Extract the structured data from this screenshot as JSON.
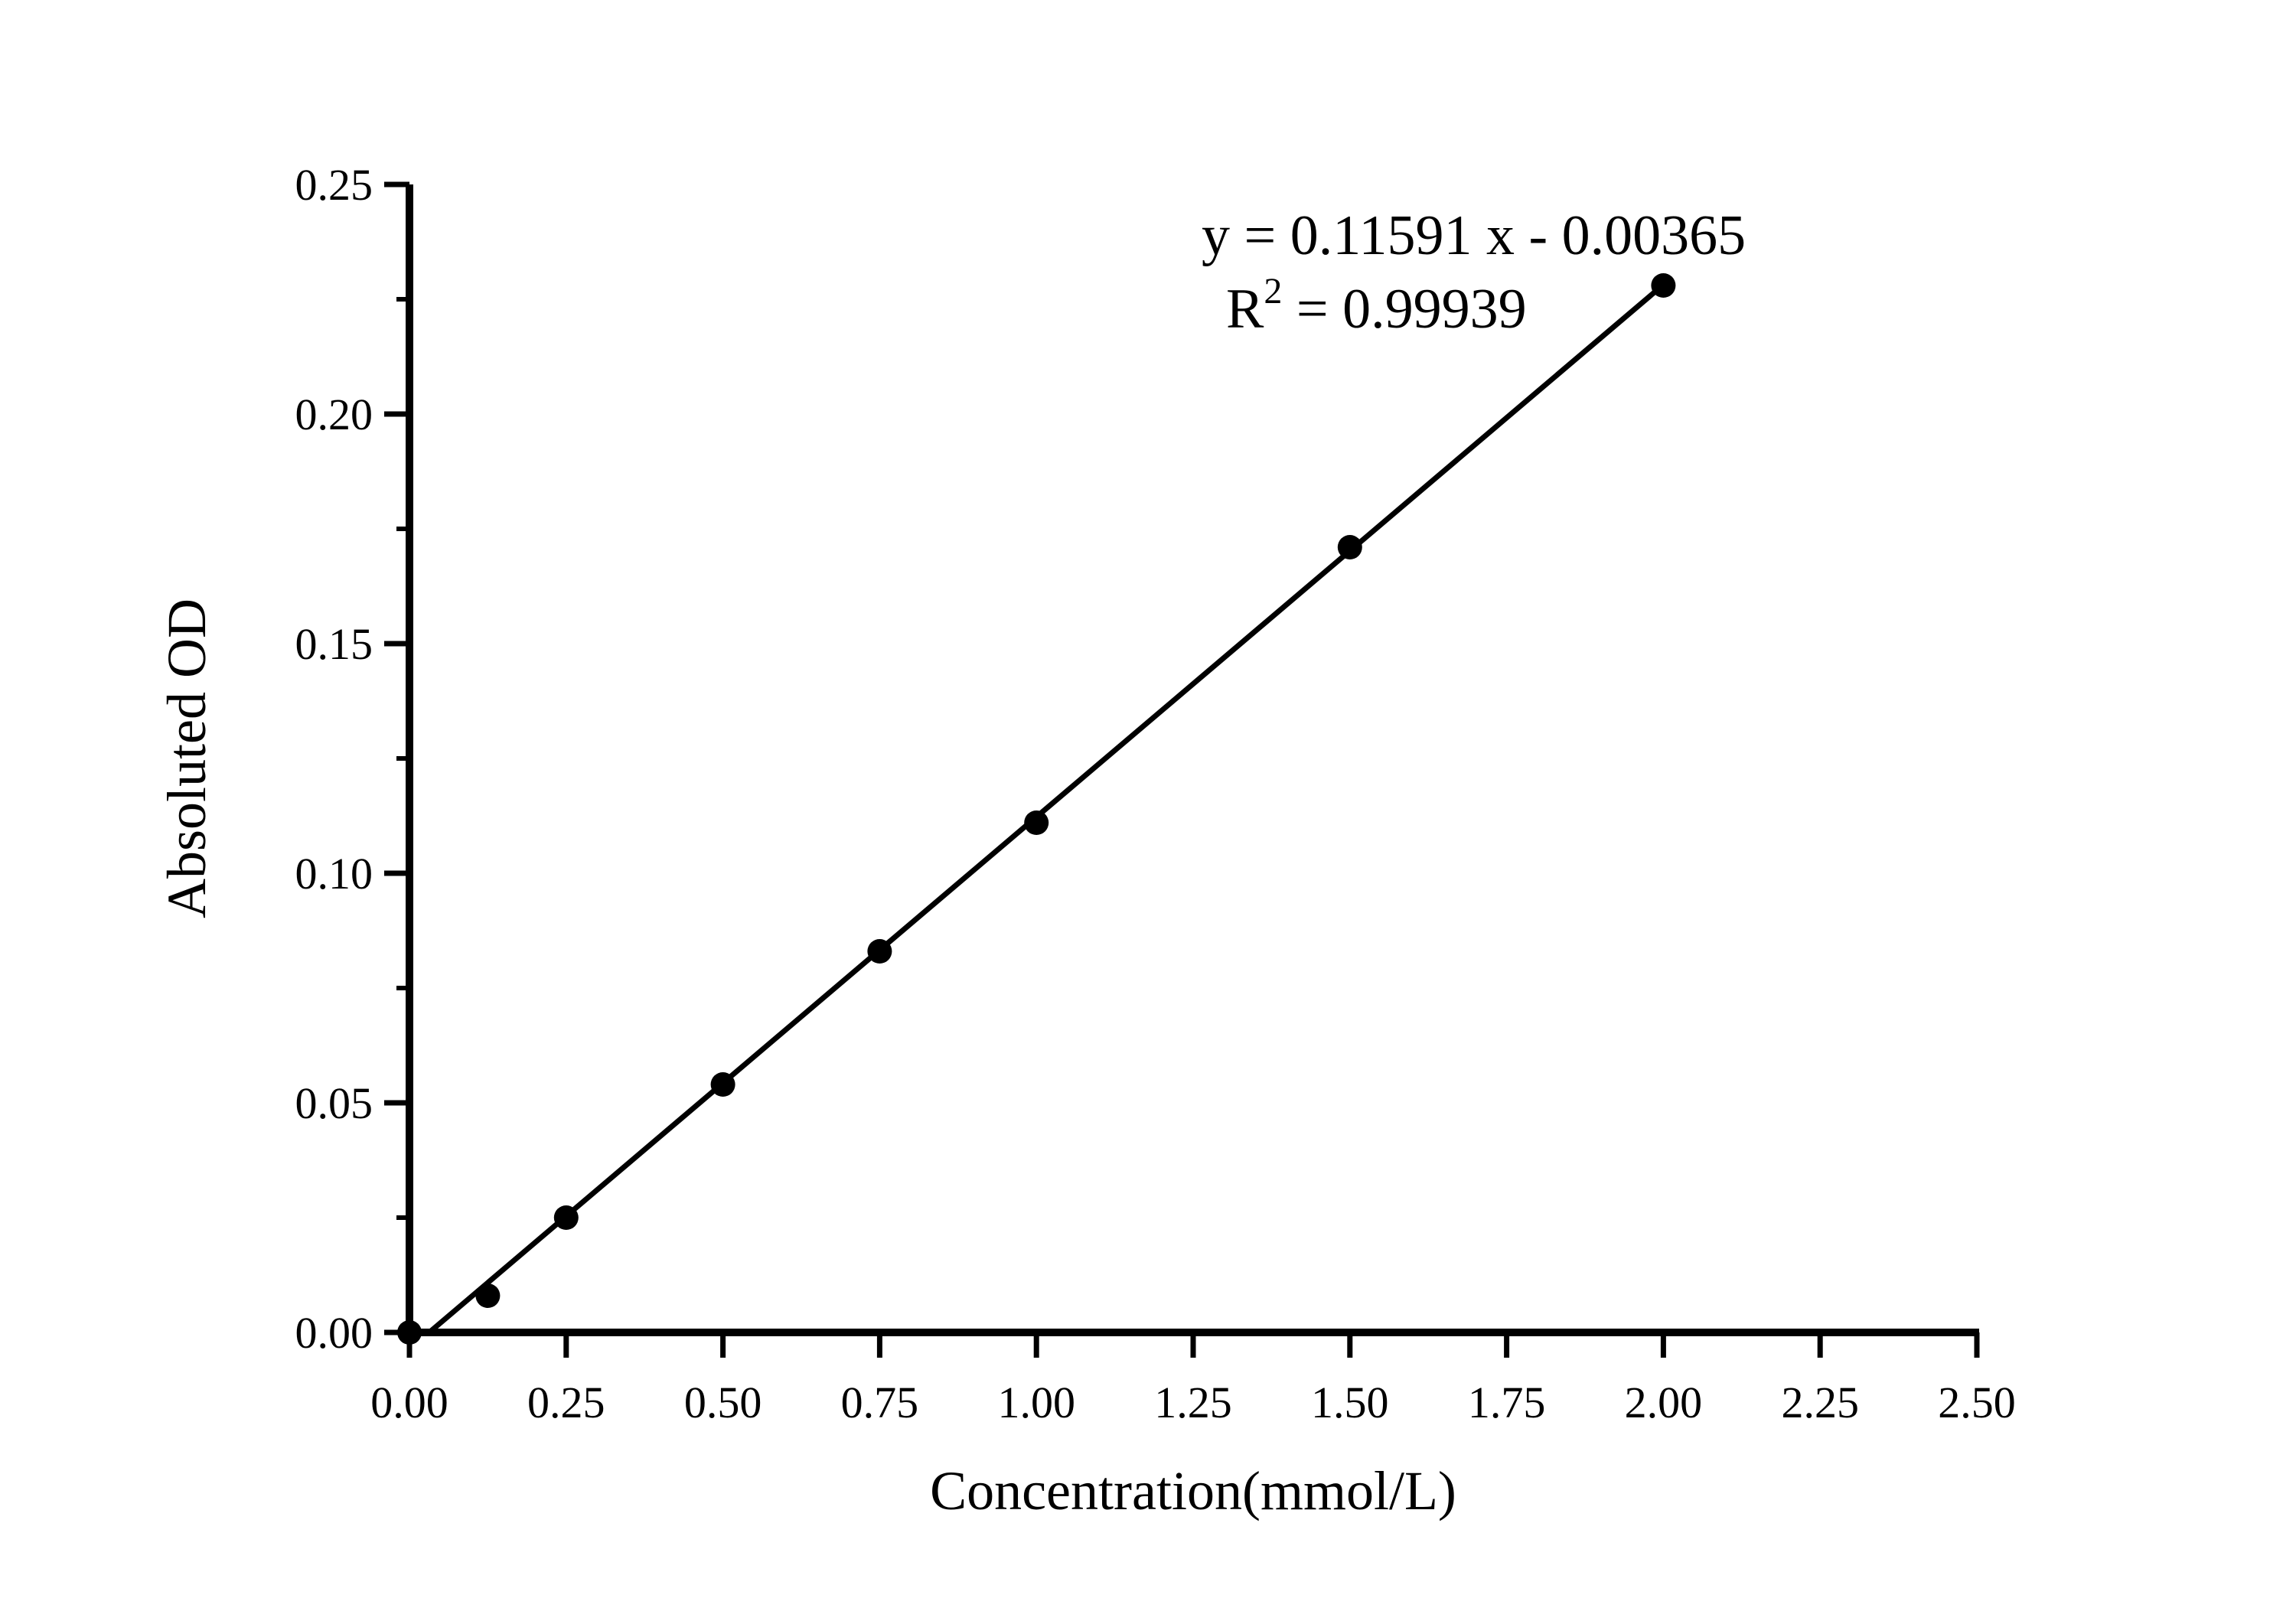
{
  "page": {
    "background_color": "#ffffff",
    "foreground_color": "#000000"
  },
  "chart_data": {
    "type": "scatter",
    "title": "",
    "xlabel": "Concentration(mmol/L)",
    "ylabel": "Absoluted OD",
    "x": [
      0,
      0.125,
      0.25,
      0.5,
      0.75,
      1.0,
      1.5,
      2.0
    ],
    "y": [
      0.0,
      0.008,
      0.025,
      0.054,
      0.083,
      0.111,
      0.171,
      0.228
    ],
    "series_name": "standard-curve-points",
    "marker": "filled-circle",
    "fit_line": {
      "slope": 0.11591,
      "intercept": -0.00365,
      "x_end": 2.0
    },
    "annotation": {
      "equation": "y = 0.11591 x - 0.00365",
      "r2_base": "R",
      "r2_sup": "2",
      "r2_rest": " = 0.99939"
    },
    "x_axis": {
      "min": 0,
      "max": 2.5,
      "major_step": 0.25,
      "minor_step": null,
      "tick_labels": [
        "0.00",
        "0.25",
        "0.50",
        "0.75",
        "1.00",
        "1.25",
        "1.50",
        "1.75",
        "2.00",
        "2.25",
        "2.50"
      ]
    },
    "y_axis": {
      "min": 0,
      "max": 0.25,
      "major_step": 0.05,
      "minor_step": 0.025,
      "tick_labels": [
        "0.00",
        "0.05",
        "0.10",
        "0.15",
        "0.20",
        "0.25"
      ]
    },
    "grid": false,
    "legend": null,
    "colors": {
      "points": "#000000",
      "line": "#000000",
      "axes": "#000000",
      "text": "#000000",
      "background": "#ffffff"
    }
  }
}
